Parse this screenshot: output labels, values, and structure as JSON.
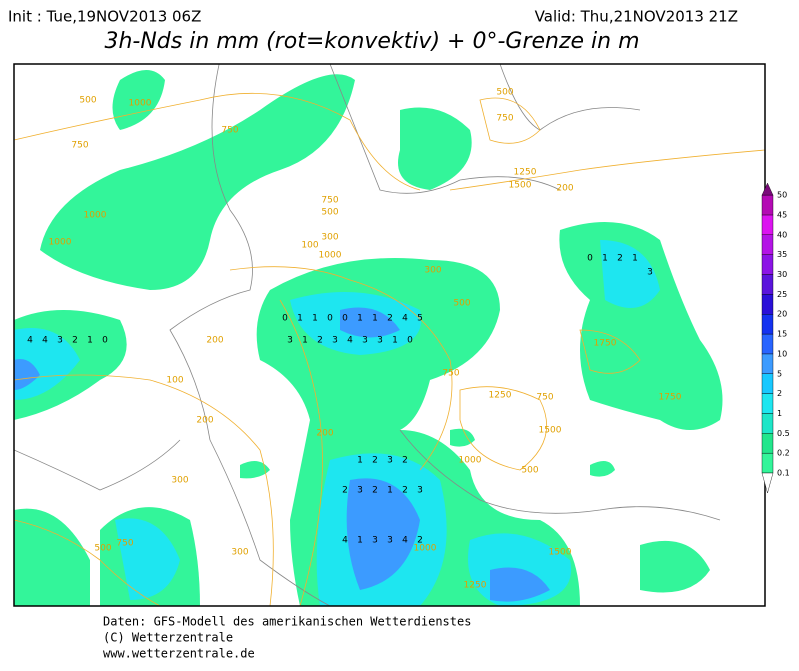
{
  "header": {
    "init": "Init : Tue,19NOV2013 06Z",
    "valid": "Valid: Thu,21NOV2013 21Z",
    "title": "3h-Nds in mm (rot=konvektiv) + 0°-Grenze in m"
  },
  "legend": {
    "levels": [
      0.1,
      0.2,
      0.5,
      1,
      2,
      5,
      10,
      15,
      20,
      25,
      30,
      35,
      40,
      45,
      50
    ],
    "colors": [
      "#33f59a",
      "#22e68c",
      "#1ee6c8",
      "#1ee6f0",
      "#18c8ff",
      "#3c9bff",
      "#2864ff",
      "#1432f0",
      "#2a10d8",
      "#5a14dc",
      "#8c14e6",
      "#b414e6",
      "#dc14f0",
      "#b40ab4",
      "#7a0a7a"
    ]
  },
  "map": {
    "contour_labels": [
      "500",
      "1000",
      "750",
      "750",
      "1000",
      "1000",
      "500",
      "750",
      "1250",
      "1500",
      "200",
      "750",
      "500",
      "100",
      "300",
      "1000",
      "300",
      "500",
      "750",
      "200",
      "100",
      "200",
      "300",
      "1000",
      "1250",
      "1500",
      "1750",
      "1750",
      "750",
      "500",
      "1000",
      "1250",
      "1500",
      "300",
      "200",
      "500",
      "750"
    ],
    "precip_labels": [
      "0",
      "1",
      "1",
      "0",
      "0",
      "1",
      "1",
      "2",
      "4",
      "5",
      "3",
      "1",
      "2",
      "3",
      "4",
      "3",
      "3",
      "1",
      "0",
      "1",
      "2",
      "3",
      "2",
      "2",
      "3",
      "2",
      "1",
      "2",
      "3",
      "4",
      "1",
      "3",
      "3",
      "4",
      "2",
      "0",
      "1",
      "2",
      "1",
      "3",
      "4",
      "4",
      "3",
      "2",
      "1",
      "0"
    ]
  },
  "footer": {
    "lines": [
      "Daten: GFS-Modell des amerikanischen Wetterdienstes",
      "(C) Wetterzentrale",
      "www.wetterzentrale.de"
    ]
  }
}
